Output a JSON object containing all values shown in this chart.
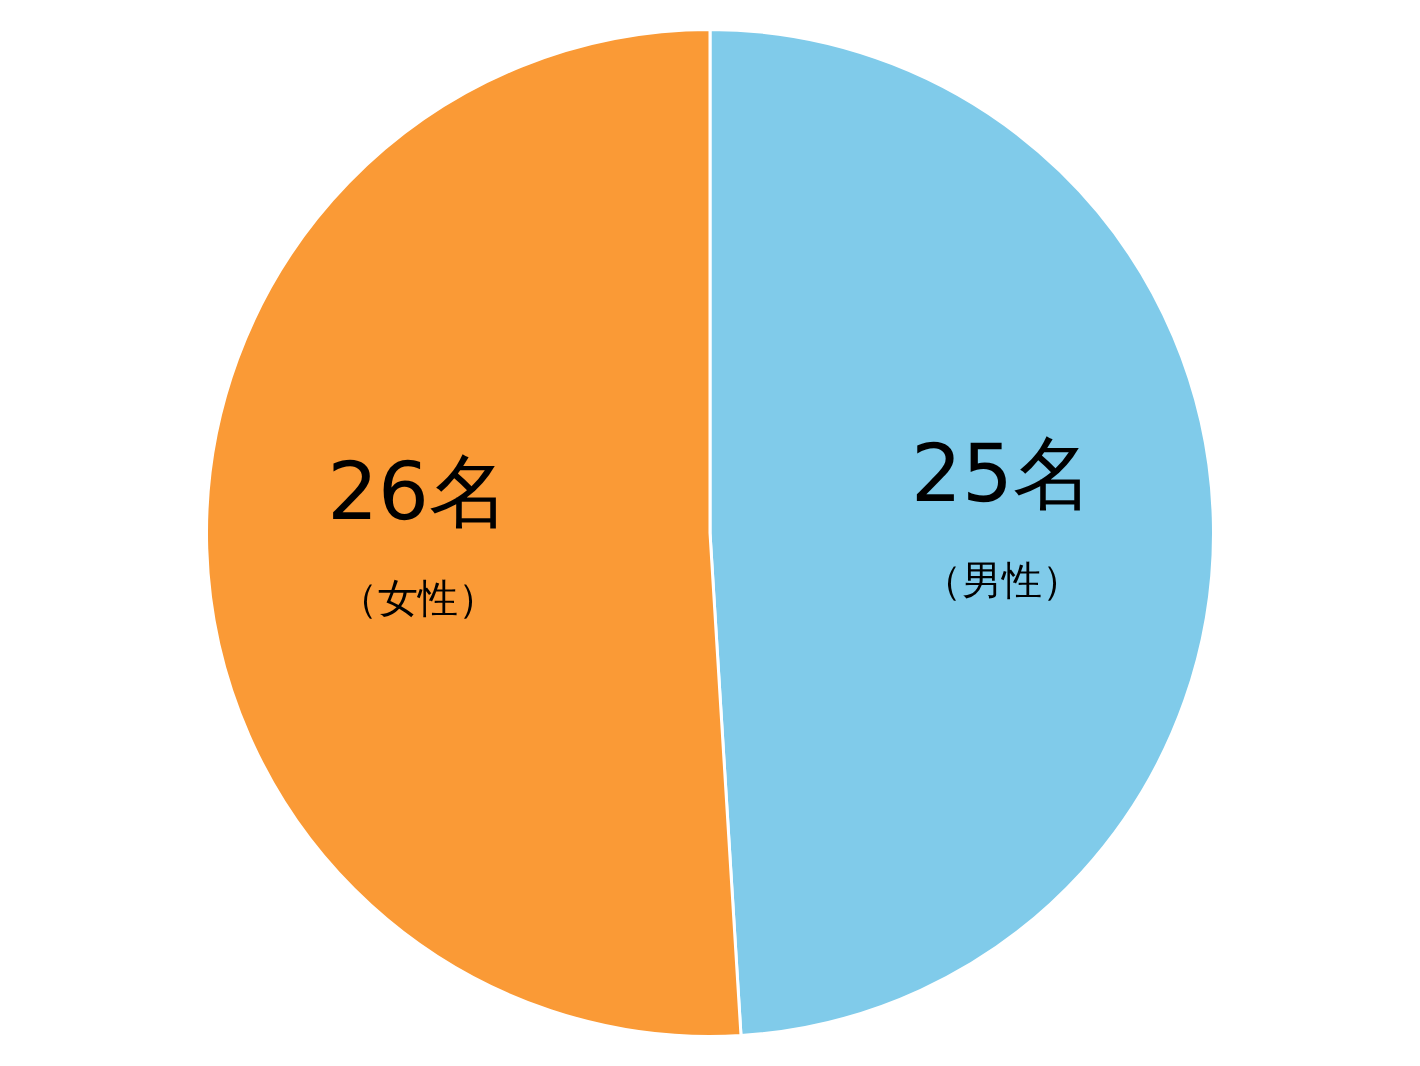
{
  "chart_data": {
    "type": "pie",
    "categories": [
      "（男性）",
      "（女性）"
    ],
    "values": [
      25,
      26
    ],
    "colors": [
      "#80cbea",
      "#fa9a36"
    ],
    "value_labels": [
      "25名",
      "26名"
    ],
    "legend": false
  }
}
